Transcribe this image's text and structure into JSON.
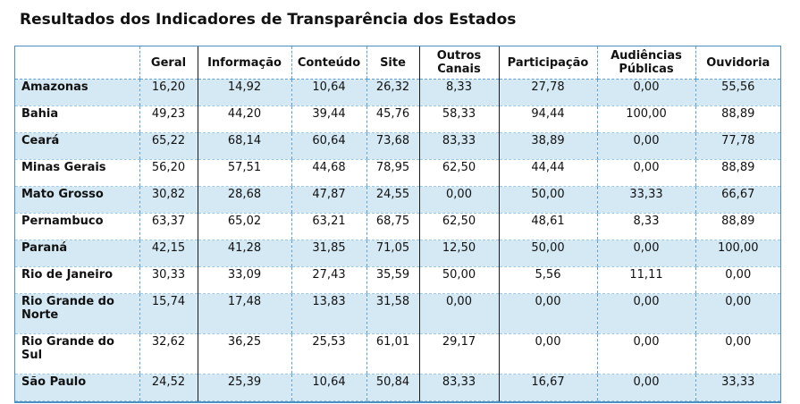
{
  "title": "Resultados dos Indicadores de Transparência dos Estados",
  "chart_data": {
    "type": "table",
    "title": "Resultados dos Indicadores de Transparência dos Estados",
    "columns": [
      "",
      "Geral",
      "Informação",
      "Conteúdo",
      "Site",
      "Outros Canais",
      "Participação",
      "Audiências Públicas",
      "Ouvidoria"
    ],
    "rows": [
      {
        "estado": "Amazonas",
        "values": [
          "16,20",
          "14,92",
          "10,64",
          "26,32",
          "8,33",
          "27,78",
          "0,00",
          "55,56"
        ]
      },
      {
        "estado": "Bahia",
        "values": [
          "49,23",
          "44,20",
          "39,44",
          "45,76",
          "58,33",
          "94,44",
          "100,00",
          "88,89"
        ]
      },
      {
        "estado": "Ceará",
        "values": [
          "65,22",
          "68,14",
          "60,64",
          "73,68",
          "83,33",
          "38,89",
          "0,00",
          "77,78"
        ]
      },
      {
        "estado": "Minas Gerais",
        "values": [
          "56,20",
          "57,51",
          "44,68",
          "78,95",
          "62,50",
          "44,44",
          "0,00",
          "88,89"
        ]
      },
      {
        "estado": "Mato Grosso",
        "values": [
          "30,82",
          "28,68",
          "47,87",
          "24,55",
          "0,00",
          "50,00",
          "33,33",
          "66,67"
        ]
      },
      {
        "estado": "Pernambuco",
        "values": [
          "63,37",
          "65,02",
          "63,21",
          "68,75",
          "62,50",
          "48,61",
          "8,33",
          "88,89"
        ]
      },
      {
        "estado": "Paraná",
        "values": [
          "42,15",
          "41,28",
          "31,85",
          "71,05",
          "12,50",
          "50,00",
          "0,00",
          "100,00"
        ]
      },
      {
        "estado": "Rio de Janeiro",
        "values": [
          "30,33",
          "33,09",
          "27,43",
          "35,59",
          "50,00",
          "5,56",
          "11,11",
          "0,00"
        ]
      },
      {
        "estado": "Rio Grande do Norte",
        "values": [
          "15,74",
          "17,48",
          "13,83",
          "31,58",
          "0,00",
          "0,00",
          "0,00",
          "0,00"
        ]
      },
      {
        "estado": "Rio Grande do Sul",
        "values": [
          "32,62",
          "36,25",
          "25,53",
          "61,01",
          "29,17",
          "0,00",
          "0,00",
          "0,00"
        ]
      },
      {
        "estado": "São Paulo",
        "values": [
          "24,52",
          "25,39",
          "10,64",
          "50,84",
          "83,33",
          "16,67",
          "0,00",
          "33,33"
        ]
      }
    ],
    "colors": {
      "row_shaded": "#d5e9f4",
      "row_plain": "#ffffff",
      "grid_line": "#5aa0d6",
      "separator_line": "#1a1a1a"
    }
  }
}
